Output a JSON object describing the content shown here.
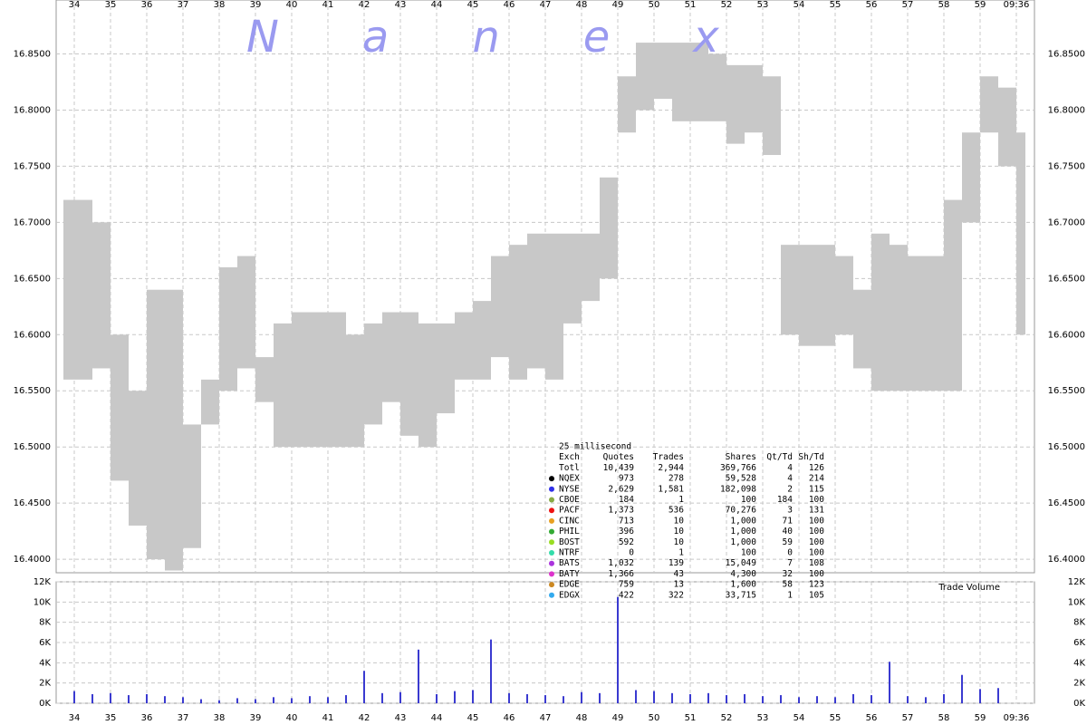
{
  "watermark": "Nanex",
  "chart_data": [
    {
      "type": "range",
      "color": "#c8c8c8",
      "x": [
        33.7,
        34,
        34.5,
        35,
        35.5,
        36,
        36.5,
        37,
        37.5,
        38,
        38.5,
        39,
        39.5,
        40,
        40.5,
        41,
        41.5,
        42,
        42.5,
        43,
        43.5,
        44,
        44.5,
        45,
        45.5,
        46,
        46.5,
        47,
        47.5,
        48,
        48.5,
        49,
        49.5,
        50,
        50.5,
        51,
        51.5,
        52,
        52.5,
        53,
        53.5,
        54,
        54.5,
        55,
        55.5,
        56,
        56.5,
        57,
        57.5,
        58,
        58.5,
        59,
        59.5,
        60
      ],
      "low": [
        16.56,
        16.56,
        16.57,
        16.47,
        16.43,
        16.4,
        16.39,
        16.41,
        16.52,
        16.55,
        16.57,
        16.54,
        16.5,
        16.5,
        16.5,
        16.5,
        16.5,
        16.52,
        16.54,
        16.51,
        16.5,
        16.53,
        16.56,
        16.56,
        16.58,
        16.56,
        16.57,
        16.56,
        16.61,
        16.63,
        16.65,
        16.78,
        16.8,
        16.81,
        16.79,
        16.79,
        16.79,
        16.77,
        16.78,
        16.76,
        16.6,
        16.59,
        16.59,
        16.6,
        16.57,
        16.55,
        16.55,
        16.55,
        16.55,
        16.55,
        16.7,
        16.78,
        16.75,
        16.6
      ],
      "high": [
        16.72,
        16.72,
        16.7,
        16.6,
        16.55,
        16.64,
        16.64,
        16.52,
        16.56,
        16.66,
        16.67,
        16.58,
        16.61,
        16.62,
        16.62,
        16.62,
        16.6,
        16.61,
        16.62,
        16.62,
        16.61,
        16.61,
        16.62,
        16.63,
        16.67,
        16.68,
        16.69,
        16.69,
        16.69,
        16.69,
        16.74,
        16.83,
        16.86,
        16.86,
        16.86,
        16.86,
        16.85,
        16.84,
        16.84,
        16.83,
        16.68,
        16.68,
        16.68,
        16.67,
        16.64,
        16.69,
        16.68,
        16.67,
        16.67,
        16.72,
        16.78,
        16.83,
        16.82,
        16.78
      ],
      "xlim": [
        33.5,
        60.5
      ],
      "xticks": [
        34,
        35,
        36,
        37,
        38,
        39,
        40,
        41,
        42,
        43,
        44,
        45,
        46,
        47,
        48,
        49,
        50,
        51,
        52,
        53,
        54,
        55,
        56,
        57,
        58,
        59,
        {
          "value": 60,
          "label": "09:36"
        }
      ],
      "ylim": [
        16.388,
        16.898
      ],
      "yticks": [
        {
          "value": 16.4,
          "label": "16.4000"
        },
        {
          "value": 16.45,
          "label": "16.4500"
        },
        {
          "value": 16.5,
          "label": "16.5000"
        },
        {
          "value": 16.55,
          "label": "16.5500"
        },
        {
          "value": 16.6,
          "label": "16.6000"
        },
        {
          "value": 16.65,
          "label": "16.6500"
        },
        {
          "value": 16.7,
          "label": "16.7000"
        },
        {
          "value": 16.75,
          "label": "16.7500"
        },
        {
          "value": 16.8,
          "label": "16.8000"
        },
        {
          "value": 16.85,
          "label": "16.8500"
        }
      ],
      "grid": true
    },
    {
      "type": "bar",
      "title": "Trade Volume",
      "color": "#3a3ad0",
      "x": [
        34,
        34.5,
        35,
        35.5,
        36,
        36.5,
        37,
        37.5,
        38,
        38.5,
        39,
        39.5,
        40,
        40.5,
        41,
        41.5,
        42,
        42.5,
        43,
        43.5,
        44,
        44.5,
        45,
        45.5,
        46,
        46.5,
        47,
        47.5,
        48,
        48.5,
        49,
        49.5,
        50,
        50.5,
        51,
        51.5,
        52,
        52.5,
        53,
        53.5,
        54,
        54.5,
        55,
        55.5,
        56,
        56.5,
        57,
        57.5,
        58,
        58.5,
        59,
        59.5
      ],
      "values": [
        1200,
        900,
        1000,
        800,
        900,
        700,
        600,
        400,
        300,
        500,
        400,
        600,
        500,
        700,
        600,
        800,
        3200,
        1000,
        1100,
        5300,
        900,
        1200,
        1300,
        6300,
        1000,
        900,
        800,
        700,
        1100,
        1000,
        10500,
        1300,
        1200,
        1000,
        900,
        1000,
        800,
        900,
        700,
        800,
        600,
        700,
        600,
        900,
        800,
        4100,
        700,
        600,
        900,
        2800,
        1400,
        1500
      ],
      "xlim": [
        33.5,
        60.5
      ],
      "ylim": [
        0,
        12000
      ],
      "yticks": [
        {
          "value": 0,
          "label": "0K"
        },
        {
          "value": 2000,
          "label": "2K"
        },
        {
          "value": 4000,
          "label": "4K"
        },
        {
          "value": 6000,
          "label": "6K"
        },
        {
          "value": 8000,
          "label": "8K"
        },
        {
          "value": 10000,
          "label": "10K"
        },
        {
          "value": 12000,
          "label": "12K"
        }
      ],
      "grid": true
    }
  ],
  "stats_table": {
    "title": "25 millisecond",
    "header": [
      "Exch",
      "Quotes",
      "Trades",
      "Shares",
      "Qt/Td",
      "Sh/Td"
    ],
    "rows": [
      {
        "color": null,
        "cells": [
          "Totl",
          "10,439",
          "2,944",
          "369,766",
          "4",
          "126"
        ]
      },
      {
        "color": "#000000",
        "cells": [
          "NQEX",
          "973",
          "278",
          "59,528",
          "4",
          "214"
        ]
      },
      {
        "color": "#3030e8",
        "cells": [
          "NYSE",
          "2,629",
          "1,581",
          "182,098",
          "2",
          "115"
        ]
      },
      {
        "color": "#88aa44",
        "cells": [
          "CBOE",
          "184",
          "1",
          "100",
          "184",
          "100"
        ]
      },
      {
        "color": "#ee1111",
        "cells": [
          "PACF",
          "1,373",
          "536",
          "70,276",
          "3",
          "131"
        ]
      },
      {
        "color": "#e8a020",
        "cells": [
          "CINC",
          "713",
          "10",
          "1,000",
          "71",
          "100"
        ]
      },
      {
        "color": "#33aa33",
        "cells": [
          "PHIL",
          "396",
          "10",
          "1,000",
          "40",
          "100"
        ]
      },
      {
        "color": "#99dd22",
        "cells": [
          "BOST",
          "592",
          "10",
          "1,000",
          "59",
          "100"
        ]
      },
      {
        "color": "#33ddaa",
        "cells": [
          "NTRF",
          "0",
          "1",
          "100",
          "0",
          "100"
        ]
      },
      {
        "color": "#aa33dd",
        "cells": [
          "BATS",
          "1,032",
          "139",
          "15,049",
          "7",
          "108"
        ]
      },
      {
        "color": "#dd33cc",
        "cells": [
          "BATY",
          "1,366",
          "43",
          "4,300",
          "32",
          "100"
        ]
      },
      {
        "color": "#cc8822",
        "cells": [
          "EDGE",
          "759",
          "13",
          "1,600",
          "58",
          "123"
        ]
      },
      {
        "color": "#33aaee",
        "cells": [
          "EDGX",
          "422",
          "322",
          "33,715",
          "1",
          "105"
        ]
      }
    ]
  }
}
